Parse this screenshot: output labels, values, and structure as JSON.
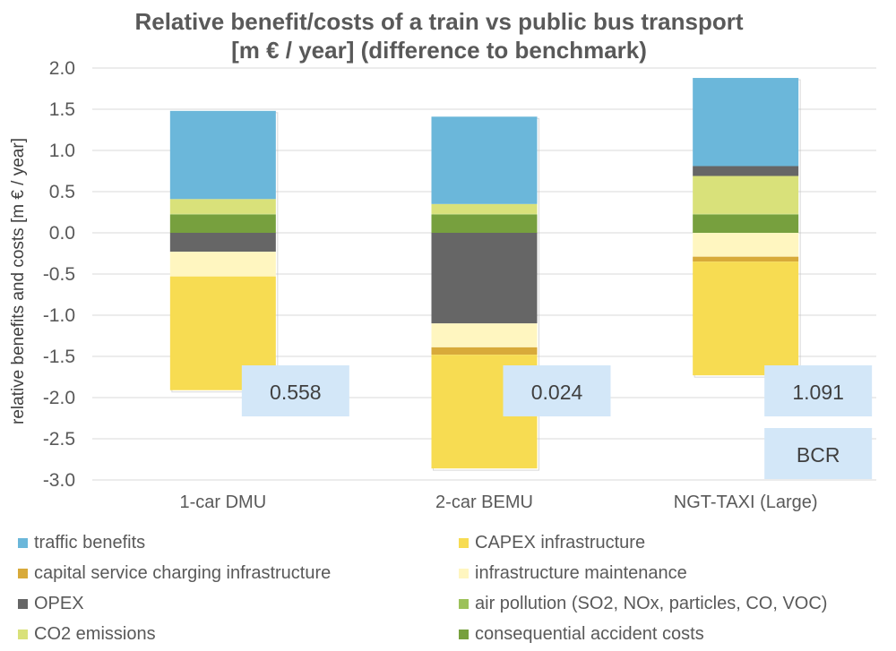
{
  "chart_data": {
    "type": "bar",
    "stacked": true,
    "title_lines": [
      "Relative benefit/costs of a train vs public bus transport",
      "[m € / year] (difference to benchmark)"
    ],
    "ylabel": "relative benefits and costs [m € / year]",
    "xlabel": "",
    "ylim": [
      -3.0,
      2.0
    ],
    "yticks": [
      "2.0",
      "1.5",
      "1.0",
      "0.5",
      "0.0",
      "-0.5",
      "-1.0",
      "-1.5",
      "-2.0",
      "-2.5",
      "-3.0"
    ],
    "grid": true,
    "legend_position": "bottom",
    "categories": [
      "1-car DMU",
      "2-car BEMU",
      "NGT-TAXI (Large)"
    ],
    "series": [
      {
        "name": "traffic benefits",
        "color": "#6BB7DA",
        "values": [
          1.07,
          1.06,
          1.07
        ]
      },
      {
        "name": "CAPEX infrastructure",
        "color": "#F7DC52",
        "values": [
          -1.38,
          -1.38,
          -1.38
        ]
      },
      {
        "name": "capital service charging infrastructure",
        "color": "#D8AA3A",
        "values": [
          0,
          -0.09,
          -0.06
        ]
      },
      {
        "name": "infrastructure maintenance",
        "color": "#FFF6C0",
        "values": [
          -0.3,
          -0.29,
          -0.29
        ]
      },
      {
        "name": "OPEX",
        "color": "#666666",
        "values": [
          -0.23,
          -1.1,
          0.12
        ]
      },
      {
        "name": "air pollution (SO2, NOx, particles, CO, VOC)",
        "color": "#9CC15A",
        "values": [
          0.01,
          0.01,
          0.01
        ]
      },
      {
        "name": "CO2 emissions",
        "color": "#D9E17A",
        "values": [
          0.18,
          0.12,
          0.46
        ]
      },
      {
        "name": "consequential accident costs",
        "color": "#77A03E",
        "values": [
          0.22,
          0.22,
          0.22
        ]
      }
    ],
    "bcr": {
      "label": "BCR",
      "values": [
        "0.558",
        "0.024",
        "1.091"
      ],
      "box_color": "#D3E7F8"
    }
  }
}
